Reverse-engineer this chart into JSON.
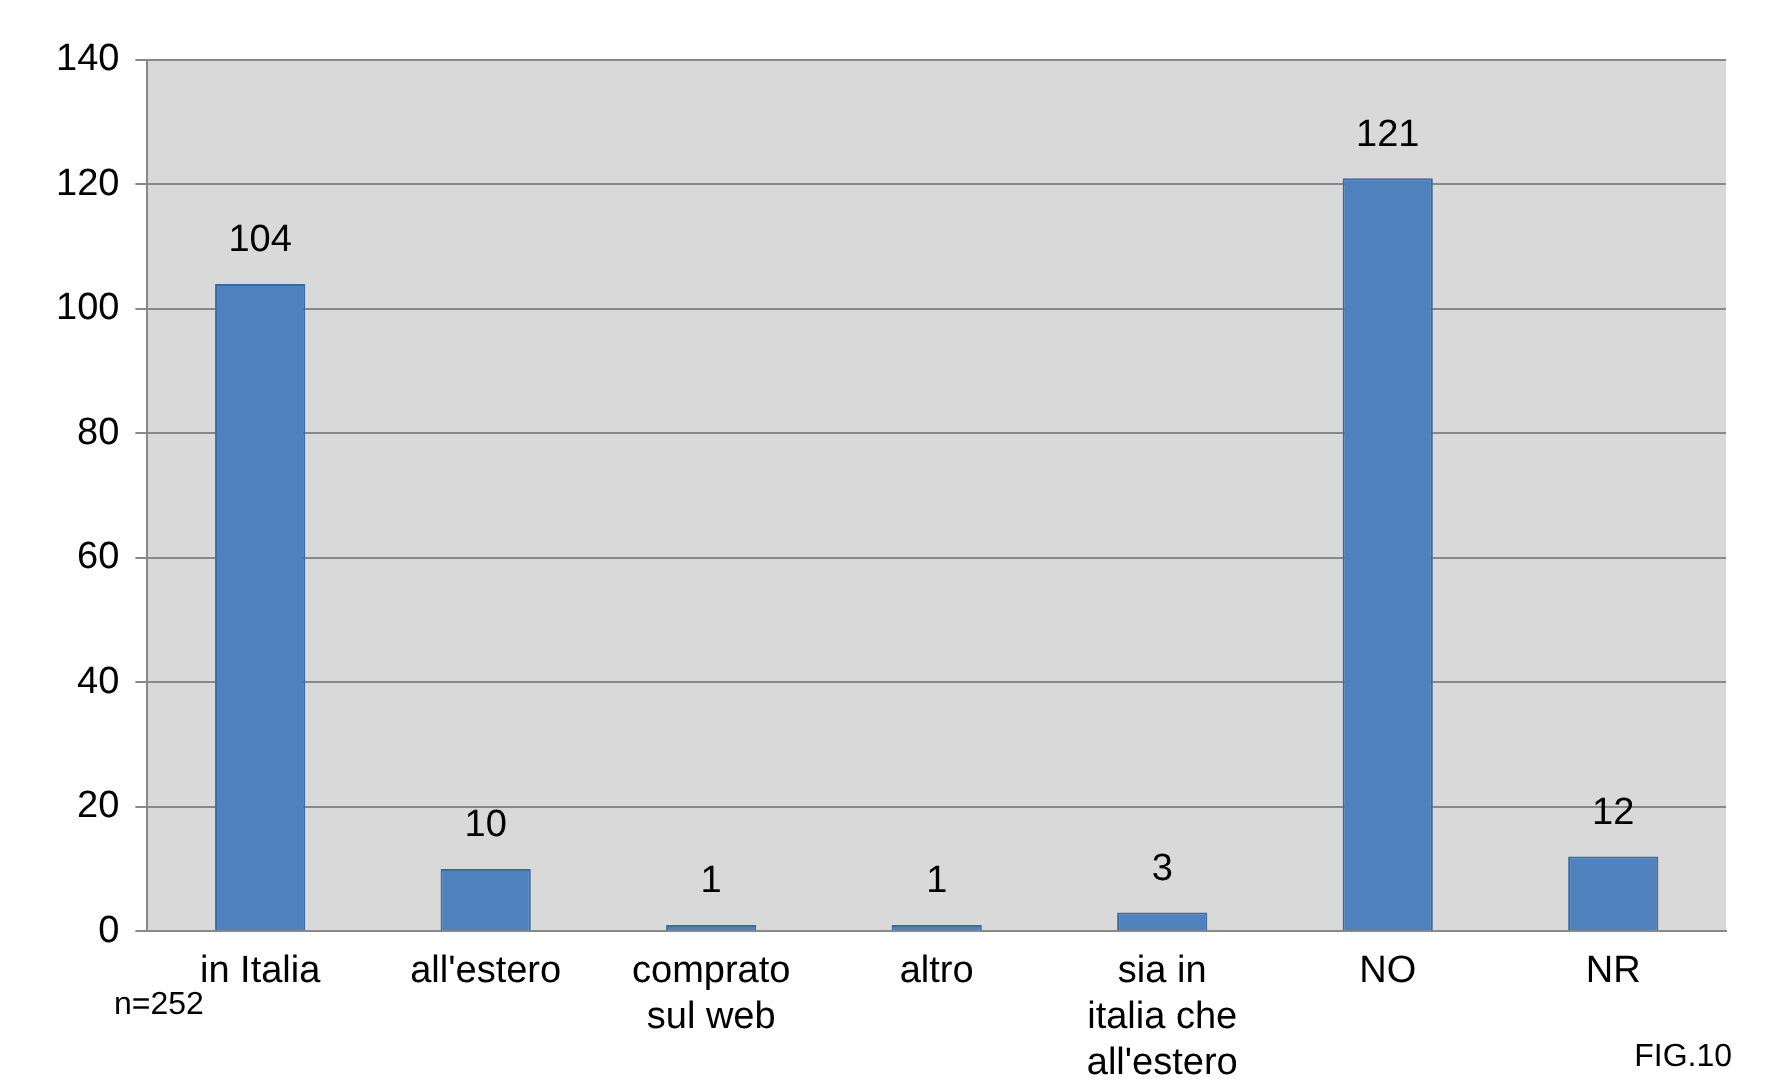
{
  "chart_data": {
    "type": "bar",
    "categories": [
      "in Italia",
      "all'estero",
      "comprato sul web",
      "altro",
      "sia in italia che all'estero",
      "NO",
      "NR"
    ],
    "values": [
      104,
      10,
      1,
      1,
      3,
      121,
      12
    ],
    "color": "#4f81bd",
    "ylim": [
      0,
      140
    ],
    "yticks": [
      0,
      20,
      40,
      60,
      80,
      100,
      120,
      140
    ],
    "grid": "y",
    "legend": false,
    "data_labels": true,
    "annotations": [
      "n=252",
      "FIG.10"
    ]
  }
}
